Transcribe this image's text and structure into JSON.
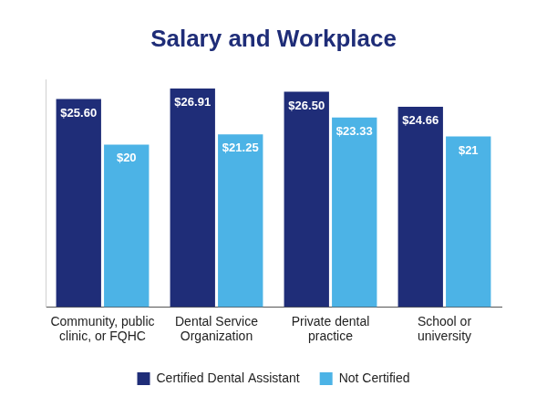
{
  "chart_data": {
    "type": "bar",
    "title": "Salary and Workplace",
    "categories": [
      [
        "Community, public",
        "clinic, or FQHC"
      ],
      [
        "Dental Service",
        "Organization"
      ],
      [
        "Private dental",
        "practice"
      ],
      [
        "School or",
        "university"
      ]
    ],
    "series": [
      {
        "name": "Certified Dental Assistant",
        "color": "#1f2d78",
        "values": [
          25.6,
          26.91,
          26.5,
          24.66
        ],
        "value_labels": [
          "$25.60",
          "$26.91",
          "$26.50",
          "$24.66"
        ]
      },
      {
        "name": "Not Certified",
        "color": "#4cb3e6",
        "values": [
          20,
          21.25,
          23.33,
          21
        ],
        "value_labels": [
          "$20",
          "$21.25",
          "$23.33",
          "$21"
        ]
      }
    ],
    "ylim": [
      0,
      28
    ],
    "grid": false,
    "legend": "bottom",
    "data_labels": true,
    "tick_labels": "x"
  }
}
